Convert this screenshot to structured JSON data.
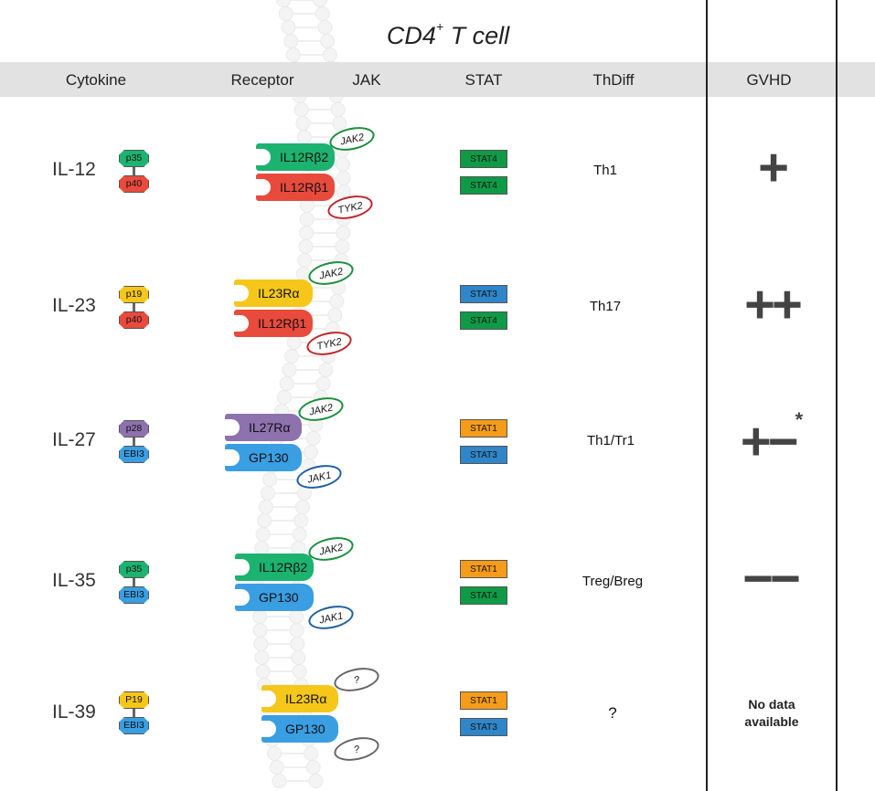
{
  "title_main": "CD4",
  "title_sup": "+",
  "title_rest": " T cell",
  "headers": {
    "cytokine": "Cytokine",
    "receptor": "Receptor",
    "jak": "JAK",
    "stat": "STAT",
    "thdiff": "ThDiff",
    "gvhd": "GVHD"
  },
  "colors": {
    "green": "#1bb36f",
    "red": "#e84a3c",
    "yellow": "#f5c71a",
    "purple": "#8d72ae",
    "blue": "#3a9ee2",
    "stat_green": "#0f9a47",
    "stat_blue": "#2f86c8",
    "stat_orange": "#f59c1a",
    "jak_green": "#1a8f3c",
    "jak_red": "#c0262b",
    "jak_blue": "#1f5fa3",
    "jak_gray": "#666666"
  },
  "rows": [
    {
      "cytokine": "IL-12",
      "subunits": [
        {
          "label": "p35",
          "color": "green"
        },
        {
          "label": "p40",
          "color": "red"
        }
      ],
      "receptors": [
        {
          "label": "IL12Rβ2",
          "color": "green"
        },
        {
          "label": "IL12Rβ1",
          "color": "red"
        }
      ],
      "jaks": [
        {
          "label": "JAK2",
          "border": "jak_green"
        },
        {
          "label": "TYK2",
          "border": "jak_red"
        }
      ],
      "stats": [
        {
          "label": "STAT4",
          "color": "stat_green"
        },
        {
          "label": "STAT4",
          "color": "stat_green"
        }
      ],
      "thdiff": "Th1",
      "gvhd": "+"
    },
    {
      "cytokine": "IL-23",
      "subunits": [
        {
          "label": "p19",
          "color": "yellow"
        },
        {
          "label": "p40",
          "color": "red"
        }
      ],
      "receptors": [
        {
          "label": "IL23Rα",
          "color": "yellow"
        },
        {
          "label": "IL12Rβ1",
          "color": "red"
        }
      ],
      "jaks": [
        {
          "label": "JAK2",
          "border": "jak_green"
        },
        {
          "label": "TYK2",
          "border": "jak_red"
        }
      ],
      "stats": [
        {
          "label": "STAT3",
          "color": "stat_blue"
        },
        {
          "label": "STAT4",
          "color": "stat_green"
        }
      ],
      "thdiff": "Th17",
      "gvhd": "++"
    },
    {
      "cytokine": "IL-27",
      "subunits": [
        {
          "label": "p28",
          "color": "purple"
        },
        {
          "label": "EBI3",
          "color": "blue"
        }
      ],
      "receptors": [
        {
          "label": "IL27Rα",
          "color": "purple"
        },
        {
          "label": "GP130",
          "color": "blue"
        }
      ],
      "jaks": [
        {
          "label": "JAK2",
          "border": "jak_green"
        },
        {
          "label": "JAK1",
          "border": "jak_blue"
        }
      ],
      "stats": [
        {
          "label": "STAT1",
          "color": "stat_orange"
        },
        {
          "label": "STAT3",
          "color": "stat_blue"
        }
      ],
      "thdiff": "Th1/Tr1",
      "gvhd": "+−",
      "gvhd_note": "*"
    },
    {
      "cytokine": "IL-35",
      "subunits": [
        {
          "label": "p35",
          "color": "green"
        },
        {
          "label": "EBI3",
          "color": "blue"
        }
      ],
      "receptors": [
        {
          "label": "IL12Rβ2",
          "color": "green"
        },
        {
          "label": "GP130",
          "color": "blue"
        }
      ],
      "jaks": [
        {
          "label": "JAK2",
          "border": "jak_green"
        },
        {
          "label": "JAK1",
          "border": "jak_blue"
        }
      ],
      "stats": [
        {
          "label": "STAT1",
          "color": "stat_orange"
        },
        {
          "label": "STAT4",
          "color": "stat_green"
        }
      ],
      "thdiff": "Treg/Breg",
      "gvhd": "−−"
    },
    {
      "cytokine": "IL-39",
      "subunits": [
        {
          "label": "P19",
          "color": "yellow"
        },
        {
          "label": "EBI3",
          "color": "blue"
        }
      ],
      "receptors": [
        {
          "label": "IL23Rα",
          "color": "yellow"
        },
        {
          "label": "GP130",
          "color": "blue"
        }
      ],
      "jaks": [
        {
          "label": "?",
          "border": "jak_gray"
        },
        {
          "label": "?",
          "border": "jak_gray"
        }
      ],
      "stats": [
        {
          "label": "STAT1",
          "color": "stat_orange"
        },
        {
          "label": "STAT3",
          "color": "stat_blue"
        }
      ],
      "thdiff": "?",
      "gvhd_nodata_1": "No data",
      "gvhd_nodata_2": "available"
    }
  ]
}
